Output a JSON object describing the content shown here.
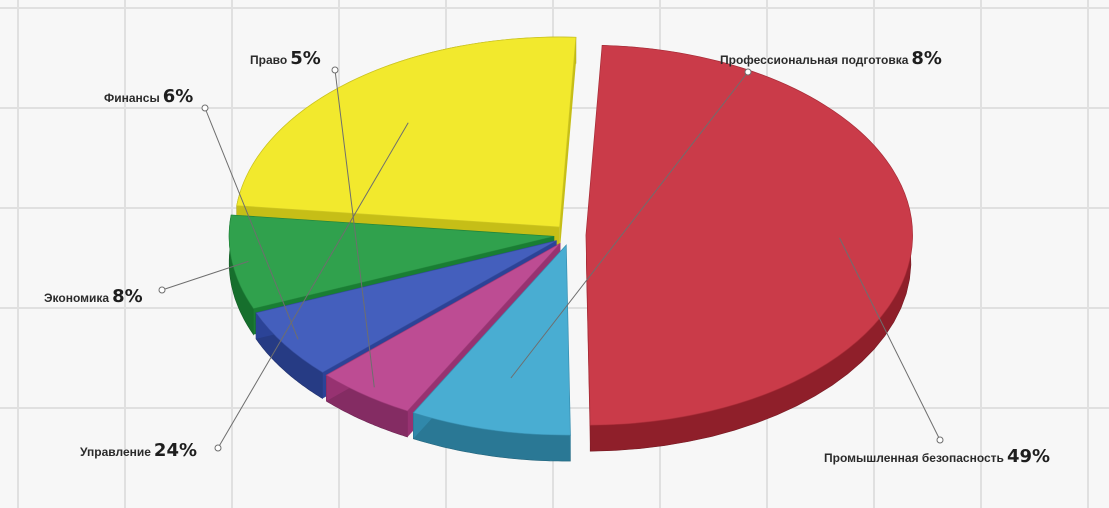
{
  "chart_data": {
    "type": "pie",
    "title": "",
    "three_d": true,
    "exploded": true,
    "grid": true,
    "labels_outside_with_leaders": true,
    "slices": [
      {
        "name": "Промышленная безопасность",
        "value": 49,
        "pct_label": "49%",
        "color": "#c62b3a"
      },
      {
        "name": "Профессиональная подготовка",
        "value": 8,
        "pct_label": "8%",
        "color": "#3aa6cf"
      },
      {
        "name": "Право",
        "value": 5,
        "pct_label": "5%",
        "color": "#b83d8a"
      },
      {
        "name": "Финансы",
        "value": 6,
        "pct_label": "6%",
        "color": "#3552b8"
      },
      {
        "name": "Экономика",
        "value": 8,
        "pct_label": "8%",
        "color": "#1f9a3e"
      },
      {
        "name": "Управление",
        "value": 24,
        "pct_label": "24%",
        "color": "#f1e81c"
      }
    ]
  }
}
